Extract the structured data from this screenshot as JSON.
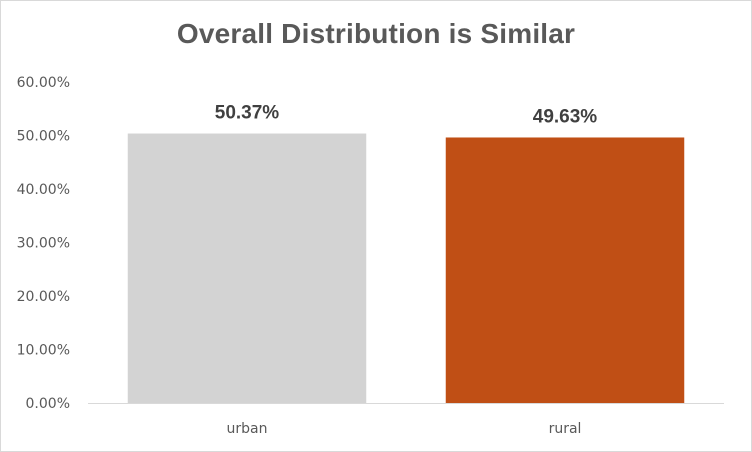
{
  "chart_data": {
    "type": "bar",
    "title": "Overall Distribution is Similar",
    "categories": [
      "urban",
      "rural"
    ],
    "values": [
      50.37,
      49.63
    ],
    "data_labels": [
      "50.37%",
      "49.63%"
    ],
    "colors": [
      "#d3d3d3",
      "#c04f15"
    ],
    "ylim": [
      0,
      60
    ],
    "yticks": [
      0,
      10,
      20,
      30,
      40,
      50,
      60
    ],
    "ytick_labels": [
      "0.00%",
      "10.00%",
      "20.00%",
      "30.00%",
      "40.00%",
      "50.00%",
      "60.00%"
    ],
    "grid": false,
    "legend": "none",
    "xlabel": "",
    "ylabel": ""
  }
}
